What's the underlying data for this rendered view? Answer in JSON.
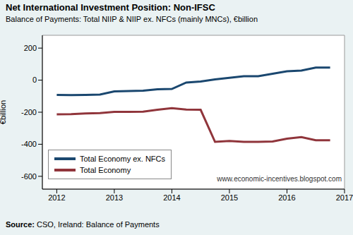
{
  "chart_data": {
    "type": "line",
    "title": "Net International Investment Position: Non-IFSC",
    "subtitle": "Balance of Payments: Total NIIP & NIIP ex. NFCs (mainly MNCs), €billion",
    "y_label": "€billion",
    "source_label": "Source:",
    "source": "CSO, Ireland: Balance of Payments",
    "annotation": "www.economic-incentives.blogspot.com",
    "x": [
      2012,
      2012.25,
      2012.5,
      2012.75,
      2013,
      2013.25,
      2013.5,
      2013.75,
      2014,
      2014.25,
      2014.5,
      2014.75,
      2015,
      2015.25,
      2015.5,
      2015.75,
      2016,
      2016.25,
      2016.5,
      2016.75
    ],
    "series": [
      {
        "name": "Total Economy ex. NFCs",
        "color": "#1a476f",
        "values": [
          -92,
          -93,
          -92,
          -90,
          -70,
          -68,
          -66,
          -57,
          -55,
          -15,
          -8,
          5,
          15,
          25,
          25,
          40,
          55,
          60,
          78,
          78
        ]
      },
      {
        "name": "Total Economy",
        "color": "#90353b",
        "values": [
          -213,
          -212,
          -208,
          -205,
          -198,
          -198,
          -197,
          -185,
          -175,
          -183,
          -185,
          -385,
          -380,
          -385,
          -385,
          -383,
          -365,
          -355,
          -375,
          -375
        ]
      }
    ],
    "xlim": [
      2011.75,
      2017
    ],
    "xticks": [
      2012,
      2013,
      2014,
      2015,
      2016,
      2017
    ],
    "ylim": [
      -680,
      280
    ],
    "yticks": [
      -600,
      -400,
      -200,
      0,
      200
    ],
    "grid": false,
    "legend": "lower left"
  }
}
